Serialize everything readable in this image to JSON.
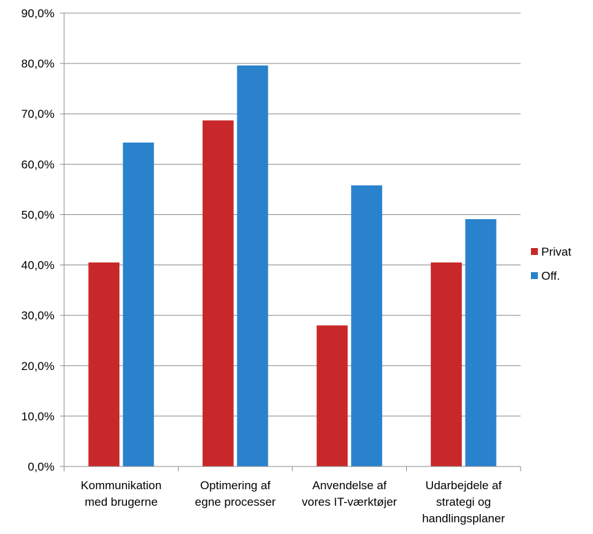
{
  "chart_data": {
    "type": "bar",
    "title": "",
    "xlabel": "",
    "ylabel": "",
    "ylim": [
      0,
      90
    ],
    "y_ticks": [
      "0,0%",
      "10,0%",
      "20,0%",
      "30,0%",
      "40,0%",
      "50,0%",
      "60,0%",
      "70,0%",
      "80,0%",
      "90,0%"
    ],
    "categories": [
      [
        "Kommunikation",
        "med brugerne"
      ],
      [
        "Optimering af",
        "egne processer"
      ],
      [
        "Anvendelse af",
        "vores IT-værktøjer"
      ],
      [
        "Udarbejdele af",
        "strategi og",
        "handlingsplaner"
      ]
    ],
    "series": [
      {
        "name": "Privat",
        "color": "#c9282a",
        "values": [
          40.5,
          68.7,
          28.0,
          40.5
        ]
      },
      {
        "name": "Off.",
        "color": "#2a82cc",
        "values": [
          64.3,
          79.6,
          55.8,
          49.1
        ]
      }
    ],
    "grid": true,
    "legend_position": "right"
  }
}
